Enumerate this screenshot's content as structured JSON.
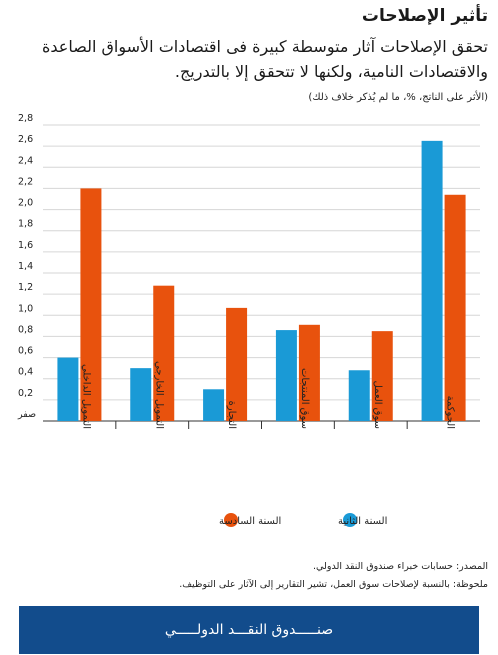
{
  "header": {
    "title": "تأثير الإصلاحات",
    "subtitle": "تحقق الإصلاحات آثار متوسطة كبيرة فى اقتصادات الأسواق الصاعدة والاقتصادات النامية، ولكنها لا تتحقق إلا بالتدريج.",
    "unit_note": "(الأثر على الناتج، %، ما لم يُذكر خلاف ذلك)"
  },
  "chart_data": {
    "type": "bar",
    "categories": [
      "التمويل الداخلي",
      "التمويل الخارجي",
      "التجارة",
      "سوق المنتجات",
      "سوق العمل",
      "الحوكمة"
    ],
    "series": [
      {
        "name": "السنة الثانية",
        "values": [
          0.6,
          0.5,
          0.3,
          0.86,
          0.48,
          2.65
        ],
        "color": "#1a9ad6"
      },
      {
        "name": "السنة السادسة",
        "values": [
          2.2,
          1.28,
          1.07,
          0.91,
          0.85,
          2.14
        ],
        "color": "#e8520d"
      }
    ],
    "ylim": [
      0,
      2.8
    ],
    "yticks": [
      "صفر",
      "0,2",
      "0,4",
      "0,6",
      "0,8",
      "1,0",
      "1,2",
      "1,4",
      "1,6",
      "1,8",
      "2,0",
      "2,2",
      "2,4",
      "2,6",
      "2,8"
    ],
    "grid": true,
    "legend": "bottom"
  },
  "source": "المصدر: حسابات خبراء صندوق النقد الدولي.",
  "note": "ملحوظة: بالنسبة لإصلاحات سوق العمل، تشير التقارير إلى الآثار على التوظيف.",
  "footer": {
    "label": "صنـــــدوق النقـــد الدولـــــي"
  }
}
